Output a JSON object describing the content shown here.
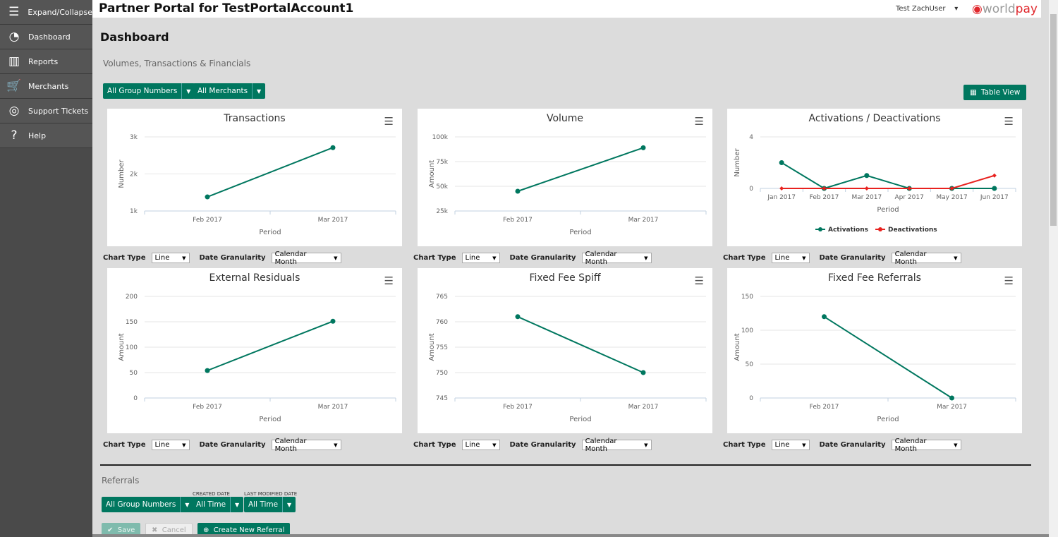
{
  "sidebar": {
    "items": [
      {
        "label": "Expand/Collapse",
        "icon": "hamburger-icon",
        "glyph": "☰"
      },
      {
        "label": "Dashboard",
        "icon": "dashboard-gauge-icon",
        "glyph": "◔"
      },
      {
        "label": "Reports",
        "icon": "bar-chart-icon",
        "glyph": "▥"
      },
      {
        "label": "Merchants",
        "icon": "cart-icon",
        "glyph": "🛒"
      },
      {
        "label": "Support Tickets",
        "icon": "lifebuoy-icon",
        "glyph": "◎"
      },
      {
        "label": "Help",
        "icon": "help-icon",
        "glyph": "?"
      }
    ]
  },
  "header": {
    "title": "Partner Portal for TestPortalAccount1",
    "user": "Test ZachUser",
    "logo": "worldpay",
    "logo_a": "world",
    "logo_b": "pay"
  },
  "page": {
    "title": "Dashboard",
    "section": "Volumes, Transactions & Financials",
    "filters": [
      "All Group Numbers",
      "All Merchants"
    ],
    "table_view": "Table View"
  },
  "controls": {
    "chart_type_label": "Chart Type",
    "chart_type": "Line",
    "granularity_label": "Date Granularity",
    "granularity": "Calendar Month"
  },
  "colors": {
    "accent": "#00775f",
    "deactivation": "#e8221f"
  },
  "chart_data": [
    {
      "type": "line",
      "title": "Transactions",
      "xlabel": "Period",
      "ylabel": "Number",
      "categories": [
        "Feb 2017",
        "Mar 2017"
      ],
      "yticks": [
        "1k",
        "2k",
        "3k"
      ],
      "ylim": [
        1000,
        3000
      ],
      "series": [
        {
          "values": [
            1380,
            2710
          ],
          "color": "#00775f"
        }
      ]
    },
    {
      "type": "line",
      "title": "Volume",
      "xlabel": "Period",
      "ylabel": "Amount",
      "categories": [
        "Feb 2017",
        "Mar 2017"
      ],
      "yticks": [
        "25k",
        "50k",
        "75k",
        "100k"
      ],
      "ylim": [
        25000,
        100000
      ],
      "series": [
        {
          "values": [
            45000,
            89000
          ],
          "color": "#00775f"
        }
      ]
    },
    {
      "type": "line",
      "title": "Activations / Deactivations",
      "xlabel": "Period",
      "ylabel": "Number",
      "categories": [
        "Jan 2017",
        "Feb 2017",
        "Mar 2017",
        "Apr 2017",
        "May 2017",
        "Jun 2017"
      ],
      "yticks": [
        "0",
        "4"
      ],
      "ylim": [
        0,
        4
      ],
      "legend": "bottom",
      "series": [
        {
          "name": "Activations",
          "values": [
            2,
            0,
            1,
            0,
            0,
            0
          ],
          "color": "#00775f"
        },
        {
          "name": "Deactivations",
          "values": [
            0,
            0,
            0,
            0,
            0,
            1
          ],
          "color": "#e8221f"
        }
      ]
    },
    {
      "type": "line",
      "title": "External Residuals",
      "xlabel": "Period",
      "ylabel": "Amount",
      "categories": [
        "Feb 2017",
        "Mar 2017"
      ],
      "yticks": [
        "0",
        "50",
        "100",
        "150",
        "200"
      ],
      "ylim": [
        0,
        200
      ],
      "series": [
        {
          "values": [
            54,
            151
          ],
          "color": "#00775f"
        }
      ]
    },
    {
      "type": "line",
      "title": "Fixed Fee Spiff",
      "xlabel": "Period",
      "ylabel": "Amount",
      "categories": [
        "Feb 2017",
        "Mar 2017"
      ],
      "yticks": [
        "745",
        "750",
        "755",
        "760",
        "765"
      ],
      "ylim": [
        745,
        765
      ],
      "series": [
        {
          "values": [
            761,
            750
          ],
          "color": "#00775f"
        }
      ]
    },
    {
      "type": "line",
      "title": "Fixed Fee Referrals",
      "xlabel": "Period",
      "ylabel": "Amount",
      "categories": [
        "Feb 2017",
        "Mar 2017"
      ],
      "yticks": [
        "0",
        "50",
        "100",
        "150"
      ],
      "ylim": [
        0,
        150
      ],
      "series": [
        {
          "values": [
            120,
            0
          ],
          "color": "#00775f"
        }
      ]
    }
  ],
  "referrals": {
    "title": "Referrals",
    "group": "All Group Numbers",
    "created_label": "CREATED DATE",
    "created": "All Time",
    "modified_label": "LAST MODIFIED DATE",
    "modified": "All Time",
    "save": "Save",
    "cancel": "Cancel",
    "create": "Create New Referral"
  }
}
